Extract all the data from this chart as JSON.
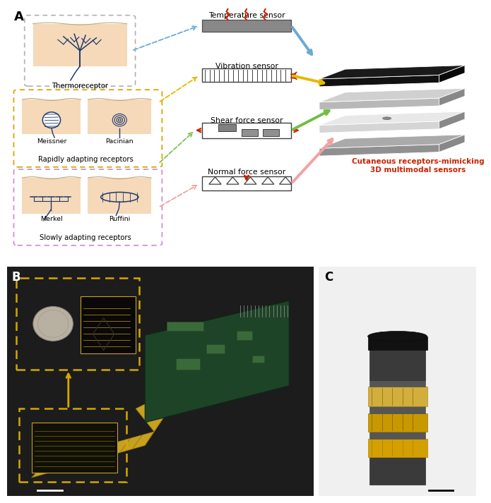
{
  "fig_width": 6.78,
  "fig_height": 7.0,
  "dpi": 100,
  "bg_color": "#ffffff",
  "panel_A_label": "A",
  "panel_B_label": "B",
  "panel_C_label": "C",
  "thermoreceptor_label": "Thermoreceptor",
  "meissner_label": "Meissner",
  "pacinian_label": "Pacinian",
  "rapidly_label": "Rapidly adapting receptors",
  "merkel_label": "Merkel",
  "ruffini_label": "Ruffini",
  "slowly_label": "Slowly adapting receptors",
  "temp_sensor_label": "Temperature sensor",
  "vib_sensor_label": "Vibration sensor",
  "shear_sensor_label": "Shear force sensor",
  "normal_sensor_label": "Normal force sensor",
  "cutaneous_label": "Cutaneous receptors-mimicking\n3D multimodal sensors",
  "skin_color": "#f5d9b8",
  "receptor_color": "#1e3a6e",
  "arrow_blue": "#6aaad4",
  "arrow_yellow": "#e8b800",
  "arrow_green": "#70c040",
  "arrow_pink": "#f4a0a0",
  "arrow_red": "#cc2200",
  "thermo_box_edge": "#b0b0b0",
  "rapid_box_edge": "#d4a800",
  "slow_box_edge": "#d090d0",
  "sensor_rect_edge": "#505050",
  "sensor_rect_face": "#909090"
}
